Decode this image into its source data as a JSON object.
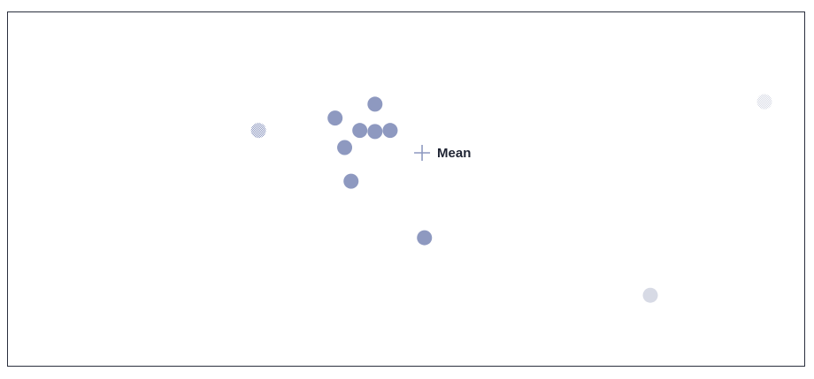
{
  "chart_data": {
    "type": "scatter",
    "title": "",
    "xlabel": "",
    "ylabel": "",
    "grid": false,
    "legend": "none",
    "xlim": [
      0,
      100
    ],
    "ylim": [
      0,
      100
    ],
    "points": [
      {
        "x": 31.5,
        "y": 66.5,
        "color": "#8e99c0",
        "pattern": "dotted"
      },
      {
        "x": 41.1,
        "y": 70.0,
        "color": "#8e99c0",
        "pattern": "solid"
      },
      {
        "x": 46.1,
        "y": 73.9,
        "color": "#8e99c0",
        "pattern": "solid"
      },
      {
        "x": 44.2,
        "y": 66.5,
        "color": "#8e99c0",
        "pattern": "solid"
      },
      {
        "x": 46.1,
        "y": 66.2,
        "color": "#8e99c0",
        "pattern": "solid"
      },
      {
        "x": 48.0,
        "y": 66.5,
        "color": "#8e99c0",
        "pattern": "solid"
      },
      {
        "x": 42.3,
        "y": 61.7,
        "color": "#8e99c0",
        "pattern": "solid"
      },
      {
        "x": 43.1,
        "y": 52.2,
        "color": "#8e99c0",
        "pattern": "solid"
      },
      {
        "x": 52.3,
        "y": 36.3,
        "color": "#8e99c0",
        "pattern": "solid"
      },
      {
        "x": 94.9,
        "y": 74.6,
        "color": "#d7dae5",
        "pattern": "dotted"
      },
      {
        "x": 80.6,
        "y": 20.1,
        "color": "#d7dae5",
        "pattern": "solid"
      }
    ],
    "mean": {
      "x": 52.0,
      "y": 60.2,
      "label": "Mean"
    }
  },
  "colors": {
    "frame": "#2b2f3e",
    "marker": "#8e99c0",
    "faded_marker": "#d7dae5",
    "mean_cross": "#8e99c0",
    "label": "#1f2433"
  }
}
